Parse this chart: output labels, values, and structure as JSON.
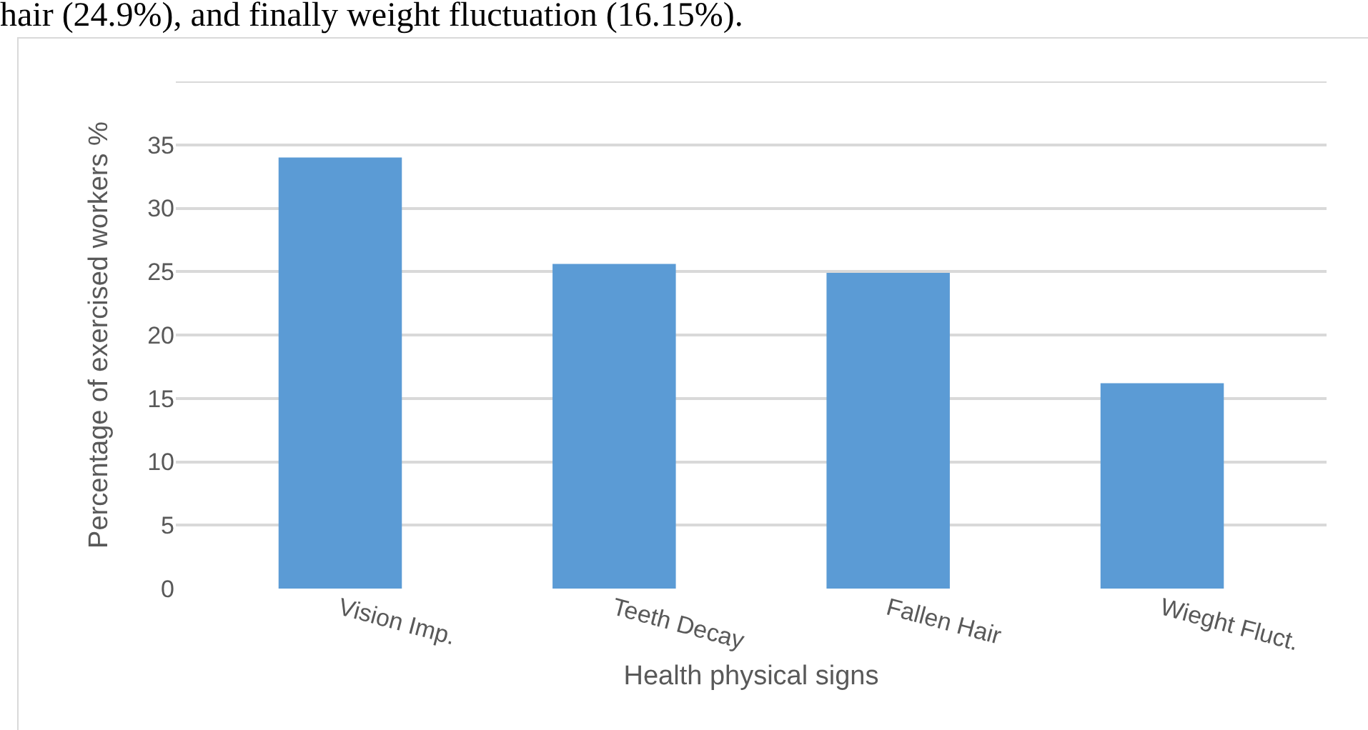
{
  "chart_data": {
    "type": "bar",
    "xlabel": "Health physical signs",
    "ylabel": "Percentage of exercised workers %",
    "annotations": [
      "hair (24.9%), and finally weight fluctuation (16.15%)."
    ],
    "categories": [
      "Vision Imp.",
      "Teeth Decay",
      "Fallen Hair",
      "Wieght Fluct."
    ],
    "values": [
      34,
      25.6,
      24.9,
      16.2
    ],
    "color": "#5b9bd5",
    "ylim": [
      0,
      40
    ],
    "yticks": [
      0,
      5,
      10,
      15,
      20,
      25,
      30,
      35,
      {
        "value": 40,
        "label": null
      }
    ],
    "grid": "y",
    "legend": false
  }
}
